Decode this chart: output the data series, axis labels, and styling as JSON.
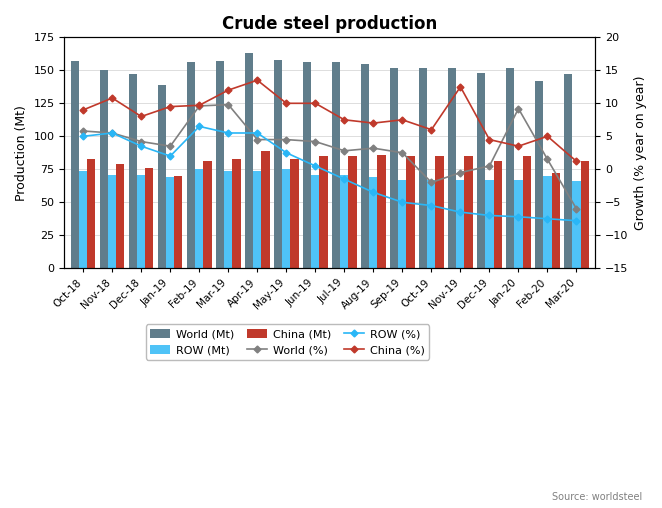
{
  "title": "Crude steel production",
  "ylabel_left": "Production (Mt)",
  "ylabel_right": "Growth (% year on year)",
  "source": "Source: worldsteel",
  "categories": [
    "Oct-18",
    "Nov-18",
    "Dec-18",
    "Jan-19",
    "Feb-19",
    "Mar-19",
    "Apr-19",
    "May-19",
    "Jun-19",
    "Jul-19",
    "Aug-19",
    "Sep-19",
    "Oct-19",
    "Nov-19",
    "Dec-19",
    "Jan-20",
    "Feb-20",
    "Mar-20"
  ],
  "world_mt": [
    157,
    150,
    147,
    139,
    156,
    157,
    163,
    158,
    156,
    156,
    155,
    152,
    152,
    152,
    148,
    152,
    142,
    147
  ],
  "row_mt": [
    74,
    71,
    71,
    69,
    75,
    74,
    74,
    75,
    71,
    71,
    69,
    67,
    67,
    67,
    67,
    67,
    70,
    66
  ],
  "china_mt": [
    83,
    79,
    76,
    70,
    81,
    83,
    89,
    83,
    85,
    85,
    86,
    85,
    85,
    85,
    81,
    85,
    72,
    81
  ],
  "world_pct": [
    5.8,
    5.5,
    4.2,
    3.5,
    9.6,
    9.8,
    4.5,
    4.5,
    4.2,
    2.8,
    3.2,
    2.5,
    -2.0,
    -0.5,
    0.5,
    9.2,
    1.5,
    -6.0
  ],
  "row_pct": [
    5.0,
    5.5,
    3.5,
    2.0,
    6.5,
    5.5,
    5.5,
    2.5,
    0.5,
    -1.5,
    -3.5,
    -5.0,
    -5.5,
    -6.5,
    -7.0,
    -7.2,
    -7.5,
    -7.8
  ],
  "china_pct": [
    9.0,
    10.8,
    8.0,
    9.5,
    9.7,
    12.0,
    13.5,
    10.0,
    10.0,
    7.5,
    7.0,
    7.5,
    6.0,
    12.5,
    4.5,
    3.5,
    5.0,
    1.2
  ],
  "bar_world_color": "#607d8b",
  "bar_row_color": "#4fc3f7",
  "bar_china_color": "#c0392b",
  "line_world_color": "#808080",
  "line_row_color": "#29b6f6",
  "line_china_color": "#c0392b",
  "ylim_left": [
    0,
    175
  ],
  "ylim_right": [
    -15,
    20
  ],
  "yticks_left": [
    0,
    25,
    50,
    75,
    100,
    125,
    150,
    175
  ],
  "yticks_right": [
    -15,
    -10,
    -5,
    0,
    5,
    10,
    15,
    20
  ],
  "bg_color": "#ffffff",
  "border_color": "#000000"
}
